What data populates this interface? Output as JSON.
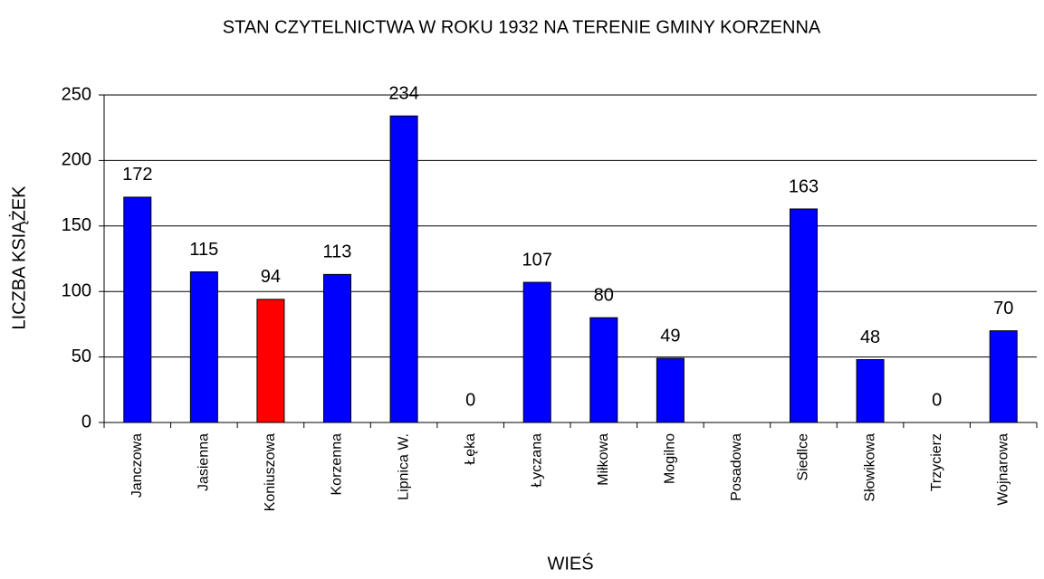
{
  "chart_data": {
    "type": "bar",
    "title": "STAN CZYTELNICTWA W ROKU 1932 NA TERENIE GMINY KORZENNA",
    "x_label": "WIEŚ",
    "y_label": "LICZBA KSIĄŻEK",
    "categories": [
      "Janczowa",
      "Jasienna",
      "Koniuszowa",
      "Korzenna",
      "Lipnica W.",
      "Łęka",
      "Łyczana",
      "Miłkowa",
      "Mogilno",
      "Posadowa",
      "Siedlce",
      "Słowikowa",
      "Trzycierz",
      "Wojnarowa"
    ],
    "values": [
      172,
      115,
      94,
      113,
      234,
      0,
      107,
      80,
      49,
      null,
      163,
      48,
      0,
      70
    ],
    "colors": [
      "#0000ff",
      "#0000ff",
      "#ff0000",
      "#0000ff",
      "#0000ff",
      "#0000ff",
      "#0000ff",
      "#0000ff",
      "#0000ff",
      "#0000ff",
      "#0000ff",
      "#0000ff",
      "#0000ff",
      "#0000ff"
    ],
    "ylim": [
      0,
      250
    ],
    "yticks": [
      0,
      50,
      100,
      150,
      200,
      250
    ],
    "grid": true
  }
}
